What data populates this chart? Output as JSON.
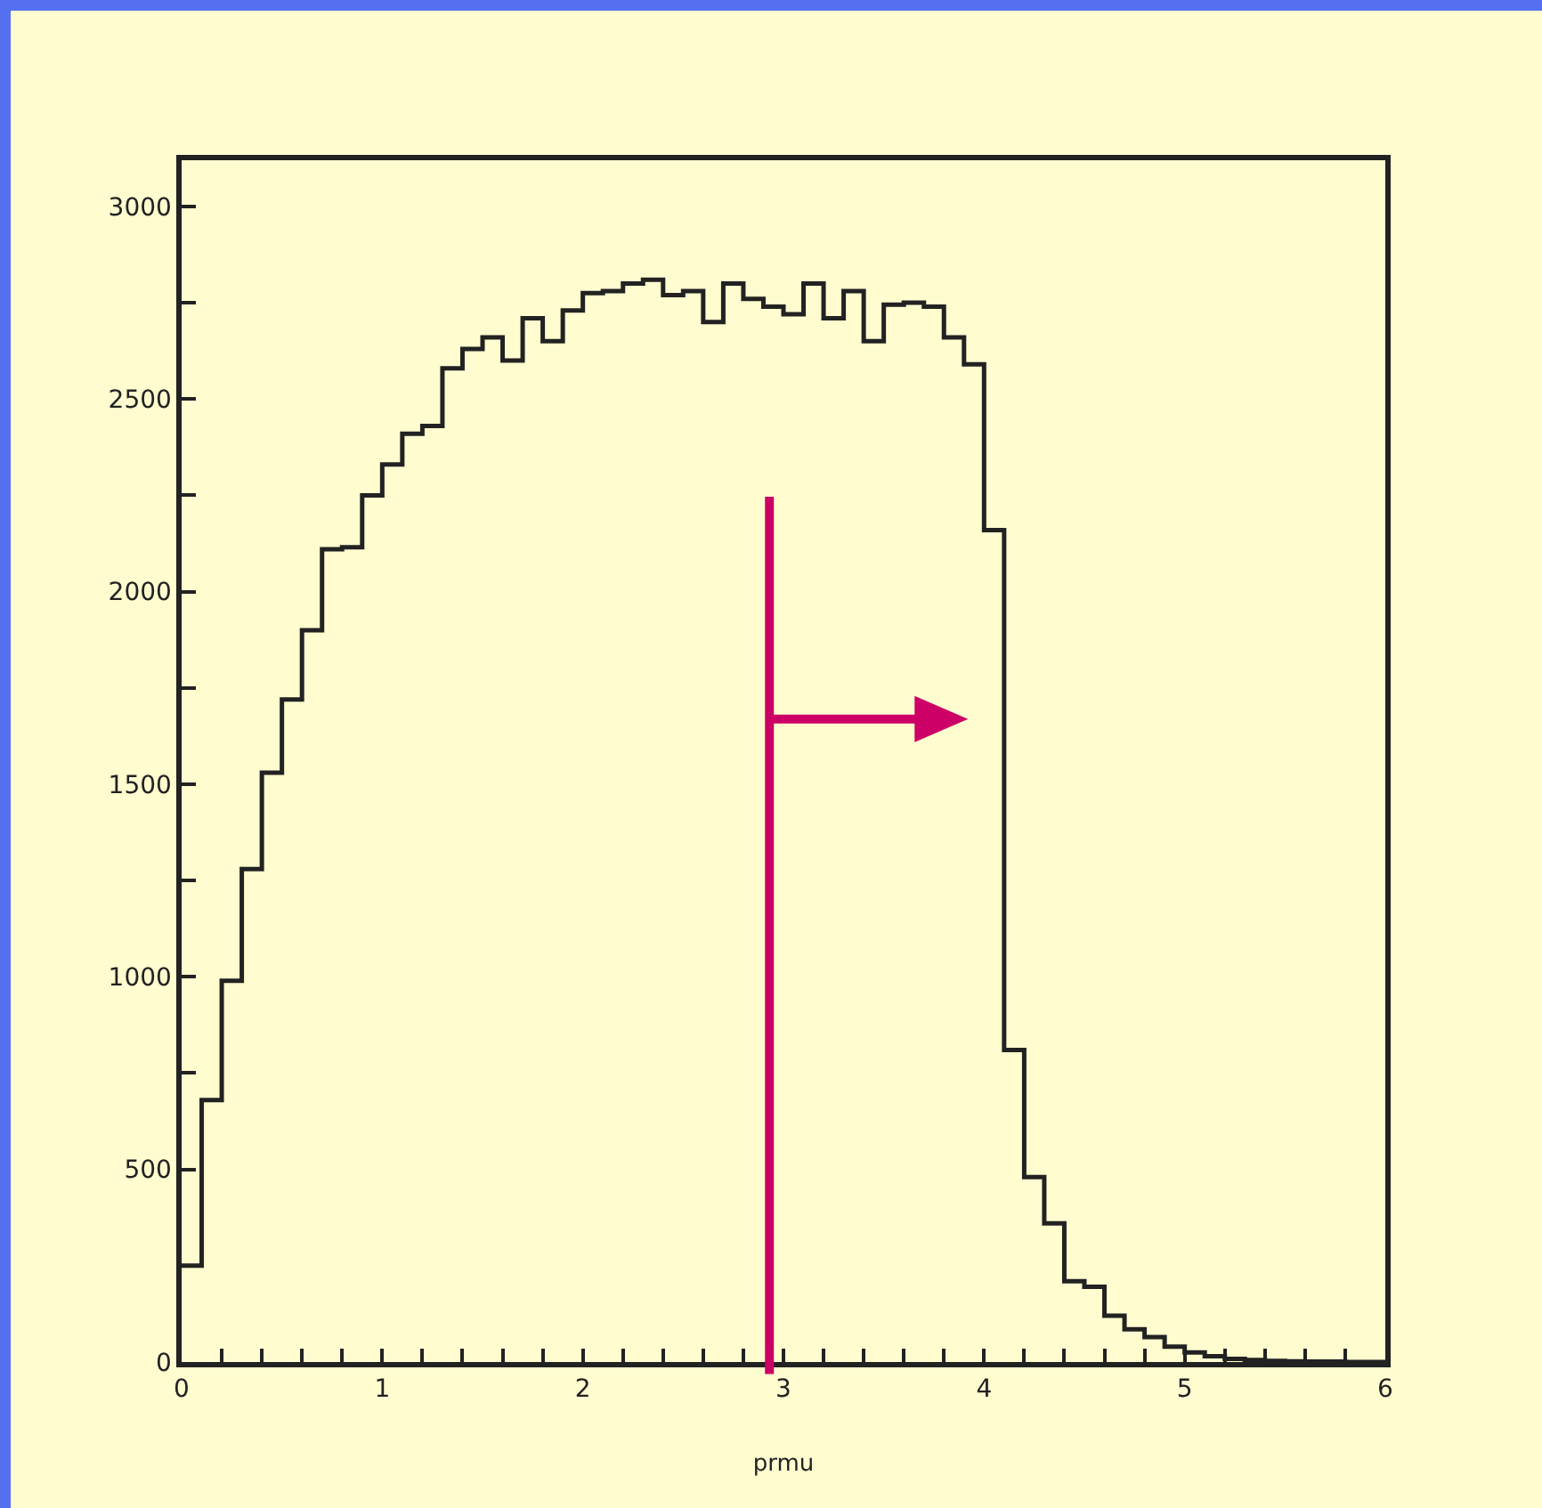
{
  "chart_data": {
    "type": "histogram",
    "xlabel": "prmu",
    "bins": [
      0,
      0.1,
      0.2,
      0.3,
      0.4,
      0.5,
      0.6,
      0.7,
      0.8,
      0.9,
      1,
      1.1,
      1.2,
      1.3,
      1.4,
      1.5,
      1.6,
      1.7,
      1.8,
      1.9,
      2,
      2.1,
      2.2,
      2.3,
      2.4,
      2.5,
      2.6,
      2.7,
      2.8,
      2.9,
      3,
      3.1,
      3.2,
      3.3,
      3.4,
      3.5,
      3.6,
      3.7,
      3.8,
      3.9,
      4,
      4.1,
      4.2,
      4.3,
      4.4,
      4.5,
      4.6,
      4.7,
      4.8,
      4.9,
      5,
      5.1,
      5.2,
      5.3,
      5.4,
      5.5,
      5.6,
      5.7,
      5.8,
      5.9,
      6
    ],
    "values": [
      250,
      680,
      990,
      1280,
      1530,
      1720,
      1900,
      2110,
      2115,
      2250,
      2330,
      2410,
      2430,
      2580,
      2630,
      2660,
      2600,
      2710,
      2650,
      2730,
      2775,
      2780,
      2800,
      2810,
      2770,
      2780,
      2700,
      2800,
      2760,
      2740,
      2720,
      2800,
      2710,
      2780,
      2650,
      2745,
      2750,
      2740,
      2660,
      2590,
      2160,
      810,
      480,
      360,
      210,
      195,
      120,
      85,
      65,
      40,
      25,
      15,
      8,
      5,
      3,
      2,
      1,
      1,
      0,
      0
    ],
    "color": "#222222",
    "xlim": [
      0,
      6
    ],
    "ylim": [
      0,
      3120
    ],
    "xticks": [
      0,
      {
        "value": 0.2,
        "label": null
      },
      {
        "value": 0.4,
        "label": null
      },
      {
        "value": 0.6,
        "label": null
      },
      {
        "value": 0.8,
        "label": null
      },
      1,
      {
        "value": 1.2,
        "label": null
      },
      {
        "value": 1.4,
        "label": null
      },
      {
        "value": 1.6,
        "label": null
      },
      {
        "value": 1.8,
        "label": null
      },
      2,
      {
        "value": 2.2,
        "label": null
      },
      {
        "value": 2.4,
        "label": null
      },
      {
        "value": 2.6,
        "label": null
      },
      {
        "value": 2.8,
        "label": null
      },
      3,
      {
        "value": 3.2,
        "label": null
      },
      {
        "value": 3.4,
        "label": null
      },
      {
        "value": 3.6,
        "label": null
      },
      {
        "value": 3.8,
        "label": null
      },
      4,
      {
        "value": 4.2,
        "label": null
      },
      {
        "value": 4.4,
        "label": null
      },
      {
        "value": 4.6,
        "label": null
      },
      {
        "value": 4.8,
        "label": null
      },
      5,
      {
        "value": 5.2,
        "label": null
      },
      {
        "value": 5.4,
        "label": null
      },
      {
        "value": 5.6,
        "label": null
      },
      {
        "value": 5.8,
        "label": null
      },
      6
    ],
    "yticks": [
      0,
      {
        "value": 250,
        "label": null
      },
      500,
      {
        "value": 750,
        "label": null
      },
      1000,
      {
        "value": 1250,
        "label": null
      },
      1500,
      {
        "value": 1750,
        "label": null
      },
      2000,
      {
        "value": 2250,
        "label": null
      },
      2500,
      {
        "value": 2750,
        "label": null
      },
      3000
    ],
    "ref_lines": [
      {
        "axis": "x",
        "value": 2.93,
        "color": "#cc0066"
      }
    ],
    "grid": false
  }
}
